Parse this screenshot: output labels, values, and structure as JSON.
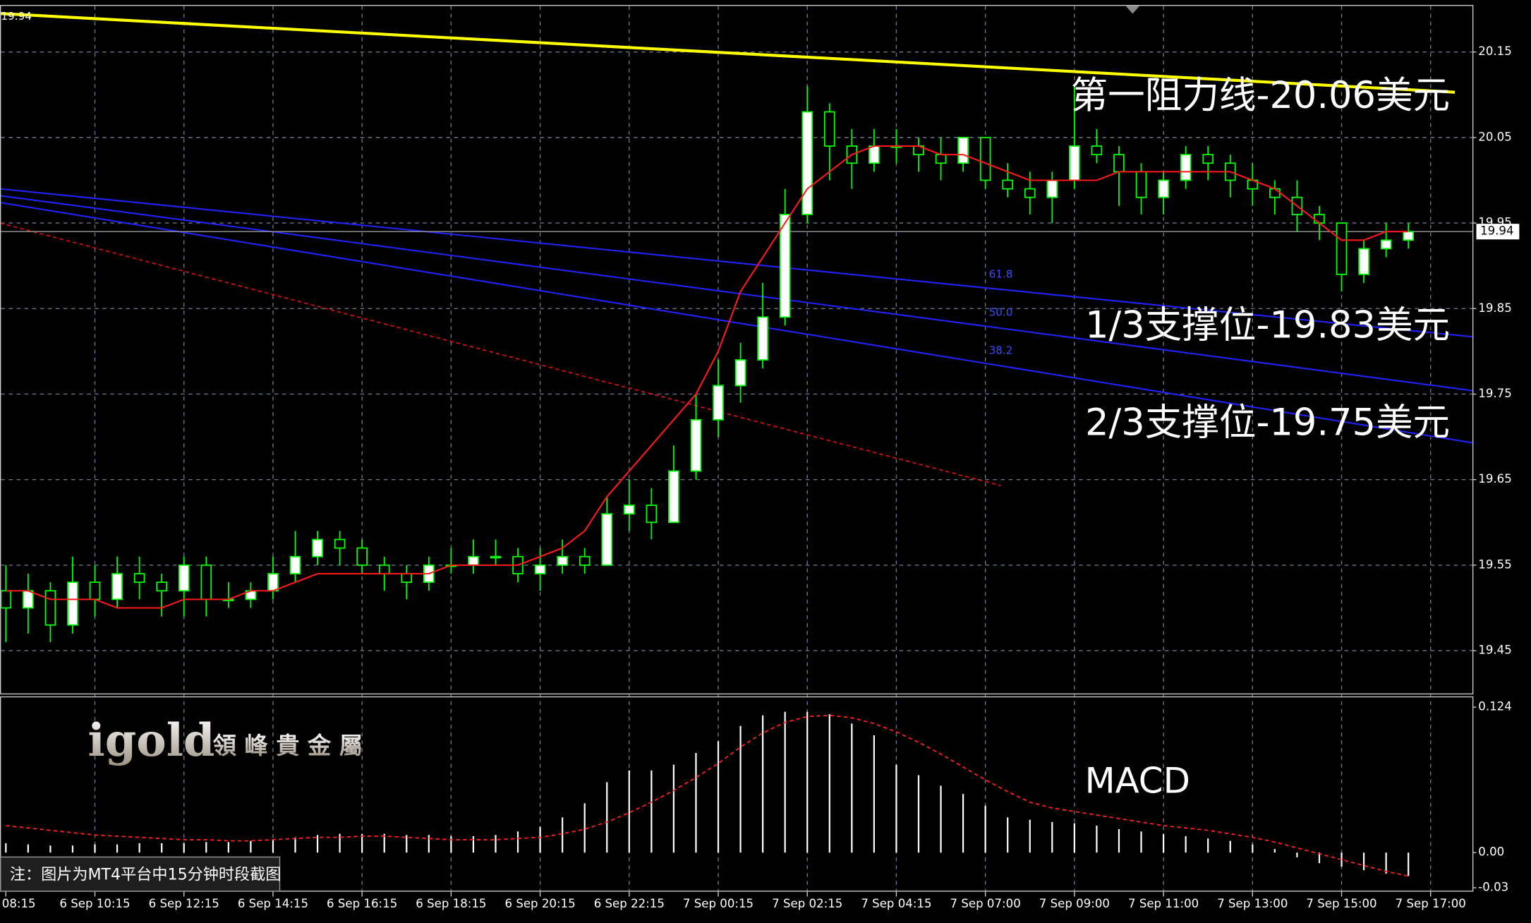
{
  "chart_data": [
    {
      "type": "candlestick",
      "current_price": 19.94,
      "ylim": [
        19.4,
        20.205
      ],
      "yticks": [
        20.15,
        20.05,
        19.95,
        19.85,
        19.75,
        19.65,
        19.55,
        19.45
      ],
      "grid": true,
      "candle_color": "#00ff00",
      "x_labels": [
        "08:15",
        "6 Sep 10:15",
        "6 Sep 12:15",
        "6 Sep 14:15",
        "6 Sep 16:15",
        "6 Sep 18:15",
        "6 Sep 20:15",
        "6 Sep 22:15",
        "7 Sep 00:15",
        "7 Sep 02:15",
        "7 Sep 04:15",
        "7 Sep 07:00",
        "7 Sep 09:00",
        "7 Sep 11:00",
        "7 Sep 13:00",
        "7 Sep 15:00",
        "7 Sep 17:00"
      ],
      "ohlc": [
        [
          19.52,
          19.55,
          19.46,
          19.5
        ],
        [
          19.5,
          19.54,
          19.47,
          19.52
        ],
        [
          19.52,
          19.53,
          19.46,
          19.48
        ],
        [
          19.48,
          19.56,
          19.47,
          19.53
        ],
        [
          19.53,
          19.55,
          19.49,
          19.51
        ],
        [
          19.51,
          19.56,
          19.5,
          19.54
        ],
        [
          19.54,
          19.56,
          19.51,
          19.53
        ],
        [
          19.53,
          19.54,
          19.49,
          19.52
        ],
        [
          19.52,
          19.56,
          19.49,
          19.55
        ],
        [
          19.55,
          19.56,
          19.49,
          19.51
        ],
        [
          19.51,
          19.53,
          19.5,
          19.51
        ],
        [
          19.51,
          19.53,
          19.5,
          19.52
        ],
        [
          19.52,
          19.56,
          19.51,
          19.54
        ],
        [
          19.54,
          19.59,
          19.53,
          19.56
        ],
        [
          19.56,
          19.59,
          19.55,
          19.58
        ],
        [
          19.58,
          19.59,
          19.55,
          19.57
        ],
        [
          19.57,
          19.58,
          19.54,
          19.55
        ],
        [
          19.55,
          19.56,
          19.52,
          19.54
        ],
        [
          19.54,
          19.55,
          19.51,
          19.53
        ],
        [
          19.53,
          19.56,
          19.52,
          19.55
        ],
        [
          19.55,
          19.57,
          19.54,
          19.55
        ],
        [
          19.55,
          19.58,
          19.54,
          19.56
        ],
        [
          19.56,
          19.58,
          19.55,
          19.56
        ],
        [
          19.56,
          19.57,
          19.53,
          19.54
        ],
        [
          19.54,
          19.57,
          19.52,
          19.55
        ],
        [
          19.55,
          19.58,
          19.54,
          19.56
        ],
        [
          19.56,
          19.57,
          19.54,
          19.55
        ],
        [
          19.55,
          19.63,
          19.55,
          19.61
        ],
        [
          19.61,
          19.65,
          19.59,
          19.62
        ],
        [
          19.62,
          19.64,
          19.58,
          19.6
        ],
        [
          19.6,
          19.69,
          19.6,
          19.66
        ],
        [
          19.66,
          19.75,
          19.65,
          19.72
        ],
        [
          19.72,
          19.79,
          19.7,
          19.76
        ],
        [
          19.76,
          19.81,
          19.74,
          19.79
        ],
        [
          19.79,
          19.88,
          19.78,
          19.84
        ],
        [
          19.84,
          19.99,
          19.83,
          19.96
        ],
        [
          19.96,
          20.11,
          19.95,
          20.08
        ],
        [
          20.08,
          20.09,
          20.0,
          20.04
        ],
        [
          20.04,
          20.06,
          19.99,
          20.02
        ],
        [
          20.02,
          20.06,
          20.01,
          20.04
        ],
        [
          20.04,
          20.06,
          20.02,
          20.04
        ],
        [
          20.04,
          20.05,
          20.01,
          20.03
        ],
        [
          20.03,
          20.05,
          20.0,
          20.02
        ],
        [
          20.02,
          20.05,
          20.01,
          20.05
        ],
        [
          20.05,
          20.05,
          19.99,
          20.0
        ],
        [
          20.0,
          20.02,
          19.98,
          19.99
        ],
        [
          19.99,
          20.01,
          19.96,
          19.98
        ],
        [
          19.98,
          20.01,
          19.95,
          20.0
        ],
        [
          20.0,
          20.11,
          19.99,
          20.04
        ],
        [
          20.04,
          20.06,
          20.02,
          20.03
        ],
        [
          20.03,
          20.04,
          19.97,
          20.01
        ],
        [
          20.01,
          20.02,
          19.96,
          19.98
        ],
        [
          19.98,
          20.01,
          19.96,
          20.0
        ],
        [
          20.0,
          20.04,
          19.99,
          20.03
        ],
        [
          20.03,
          20.04,
          20.0,
          20.02
        ],
        [
          20.02,
          20.03,
          19.98,
          20.0
        ],
        [
          20.0,
          20.02,
          19.97,
          19.99
        ],
        [
          19.99,
          20.0,
          19.96,
          19.98
        ],
        [
          19.98,
          20.0,
          19.94,
          19.96
        ],
        [
          19.96,
          19.97,
          19.93,
          19.95
        ],
        [
          19.95,
          19.95,
          19.87,
          19.89
        ],
        [
          19.89,
          19.93,
          19.88,
          19.92
        ],
        [
          19.92,
          19.95,
          19.91,
          19.93
        ],
        [
          19.93,
          19.95,
          19.92,
          19.94
        ]
      ],
      "ma": {
        "color": "#ff1a1a",
        "values": [
          19.52,
          19.52,
          19.51,
          19.51,
          19.51,
          19.5,
          19.5,
          19.5,
          19.51,
          19.51,
          19.51,
          19.52,
          19.52,
          19.53,
          19.54,
          19.54,
          19.54,
          19.54,
          19.54,
          19.54,
          19.55,
          19.55,
          19.55,
          19.55,
          19.56,
          19.57,
          19.59,
          19.63,
          19.66,
          19.69,
          19.72,
          19.75,
          19.8,
          19.87,
          19.91,
          19.95,
          19.99,
          20.01,
          20.03,
          20.04,
          20.04,
          20.04,
          20.03,
          20.03,
          20.02,
          20.01,
          20.0,
          20.0,
          20.0,
          20.0,
          20.01,
          20.01,
          20.01,
          20.01,
          20.01,
          20.01,
          20.0,
          19.99,
          19.97,
          19.95,
          19.93,
          19.93,
          19.94,
          19.94
        ]
      },
      "lines": [
        {
          "color": "#ffff00",
          "width": 3,
          "dashed": false,
          "x": [
            -0.26,
            65.09
          ],
          "y": [
            20.195,
            20.103
          ]
        },
        {
          "color": "#2222ff",
          "width": 1.5,
          "dashed": false,
          "x": [
            -0.26,
            65.88
          ],
          "y": [
            19.99,
            19.817
          ]
        },
        {
          "color": "#2222ff",
          "width": 1.5,
          "dashed": false,
          "x": [
            -0.26,
            65.88
          ],
          "y": [
            19.982,
            19.754
          ]
        },
        {
          "color": "#2222ff",
          "width": 1.5,
          "dashed": false,
          "x": [
            -0.26,
            65.88
          ],
          "y": [
            19.974,
            19.693
          ]
        },
        {
          "color": "#e01010",
          "width": 1.2,
          "dashed": true,
          "x": [
            -0.26,
            44.69
          ],
          "y": [
            19.95,
            19.643
          ]
        }
      ],
      "fib_labels": [
        "61.8",
        "50.0",
        "38.2"
      ],
      "annotations": [
        "第一阻力线-20.06美元",
        "1/3支撑位-19.83美元",
        "2/3支撑位-19.75美元"
      ]
    },
    {
      "type": "macd",
      "title": "MACD",
      "ylim": [
        -0.0325,
        0.1332
      ],
      "yticks": [
        0.124,
        {
          "value": 0,
          "label": "0.00"
        },
        -0.03
      ],
      "histogram": {
        "color": "#ffffff",
        "values": [
          0.008,
          0.007,
          0.006,
          0.006,
          0.007,
          0.007,
          0.008,
          0.008,
          0.008,
          0.009,
          0.009,
          0.01,
          0.011,
          0.013,
          0.015,
          0.016,
          0.016,
          0.016,
          0.015,
          0.015,
          0.014,
          0.014,
          0.015,
          0.018,
          0.022,
          0.03,
          0.042,
          0.06,
          0.07,
          0.07,
          0.075,
          0.085,
          0.095,
          0.108,
          0.117,
          0.12,
          0.12,
          0.118,
          0.11,
          0.1,
          0.075,
          0.066,
          0.057,
          0.05,
          0.04,
          0.03,
          0.028,
          0.026,
          0.025,
          0.023,
          0.02,
          0.018,
          0.016,
          0.014,
          0.012,
          0.01,
          0.007,
          0.003,
          -0.004,
          -0.009,
          -0.012,
          -0.015,
          -0.018,
          -0.02
        ]
      },
      "signal": {
        "color": "#ff2020",
        "values": [
          0.023,
          0.021,
          0.019,
          0.017,
          0.015,
          0.014,
          0.013,
          0.012,
          0.011,
          0.011,
          0.01,
          0.01,
          0.011,
          0.012,
          0.013,
          0.013,
          0.014,
          0.014,
          0.013,
          0.012,
          0.011,
          0.011,
          0.011,
          0.012,
          0.013,
          0.016,
          0.02,
          0.026,
          0.034,
          0.043,
          0.053,
          0.064,
          0.076,
          0.09,
          0.102,
          0.111,
          0.116,
          0.117,
          0.115,
          0.11,
          0.103,
          0.094,
          0.084,
          0.073,
          0.062,
          0.052,
          0.043,
          0.038,
          0.035,
          0.032,
          0.029,
          0.026,
          0.023,
          0.021,
          0.019,
          0.016,
          0.013,
          0.009,
          0.004,
          -0.001,
          -0.006,
          -0.011,
          -0.016,
          -0.02
        ]
      }
    }
  ],
  "logo": {
    "brand": "igold",
    "name": "領 峰 貴 金 屬"
  },
  "note": "注：图片为MT4平台中15分钟时段截图"
}
